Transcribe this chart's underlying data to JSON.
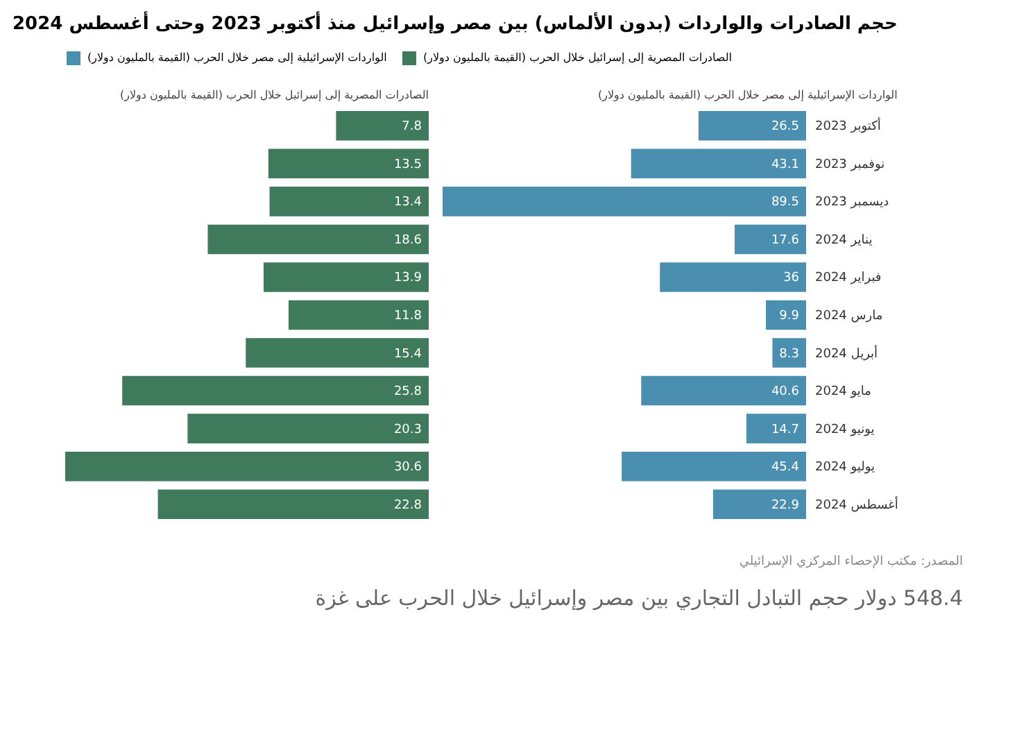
{
  "chart_data": [
    {
      "type": "bar",
      "orientation": "horizontal",
      "title": "حجم الصادرات والواردات (بدون الألماس) بين مصر وإسرائيل منذ أكتوبر 2023 وحتى أغسطس 2024",
      "subtitle": "الواردات الإسرائيلية إلى مصر خلال الحرب (القيمة بالمليون دولار)",
      "categories": [
        "أكتوبر 2023",
        "نوفمبر 2023",
        "ديسمبر 2023",
        "يناير 2024",
        "فبراير 2024",
        "مارس 2024",
        "أبريل 2024",
        "مايو 2024",
        "يونيو 2024",
        "يوليو 2024",
        "أغسطس 2024"
      ],
      "series": [
        {
          "name": "الواردات الإسرائيلية إلى مصر خلال الحرب (القيمة بالمليون دولار)",
          "color": "#4a8fb0",
          "values": [
            26.5,
            43.1,
            89.5,
            17.6,
            36,
            9.9,
            8.3,
            40.6,
            14.7,
            45.4,
            22.9
          ]
        }
      ],
      "xlim": [
        89.5,
        0
      ],
      "tick_labels": "y",
      "data_labels": true,
      "legend": "top",
      "annotations": [
        "المصدر: مكتب الإحصاء المركزي الإسرائيلي",
        "548.4 دولار حجم التبادل التجاري بين مصر وإسرائيل خلال الحرب على غزة"
      ]
    },
    {
      "type": "bar",
      "orientation": "horizontal",
      "subtitle": "الصادرات المصرية إلى إسرائيل خلال الحرب (القيمة بالمليون دولار)",
      "series": [
        {
          "name": "الصادرات المصرية إلى إسرائيل خلال الحرب (القيمة بالمليون دولار)",
          "color": "#3f7a5c",
          "values": [
            7.8,
            13.5,
            13.4,
            18.6,
            13.9,
            11.8,
            15.4,
            25.8,
            20.3,
            30.6,
            22.8
          ]
        }
      ],
      "xlim": [
        30.6,
        0
      ],
      "tick_labels": false,
      "data_labels": true,
      "legend": "top"
    }
  ]
}
